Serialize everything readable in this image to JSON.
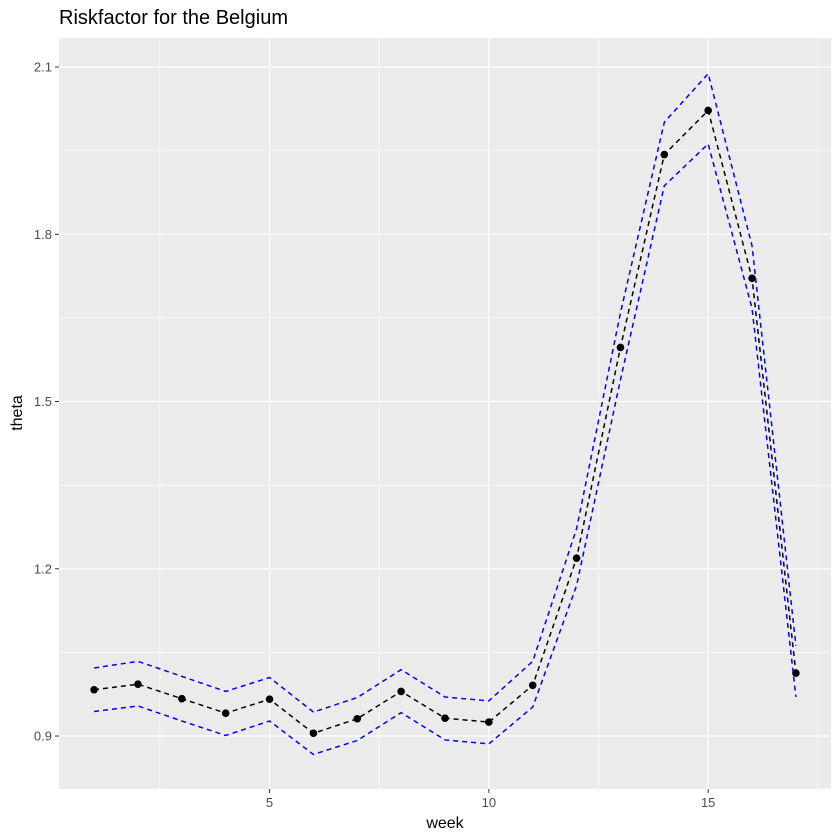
{
  "chart_data": {
    "type": "line",
    "title": "Riskfactor for the Belgium",
    "xlabel": "week",
    "ylabel": "theta",
    "xlim": [
      0.2,
      17.8
    ],
    "ylim": [
      0.805,
      2.152
    ],
    "x_ticks": [
      5,
      10,
      15
    ],
    "x_minor_ticks": [
      2.5,
      7.5,
      12.5,
      17.5
    ],
    "y_ticks": [
      0.9,
      1.2,
      1.5,
      1.8,
      2.1
    ],
    "y_tick_labels": [
      "0.9",
      "1.2",
      "1.5",
      "1.8",
      "2.1"
    ],
    "y_minor_ticks": [
      1.05,
      1.35,
      1.65,
      1.95
    ],
    "grid": true,
    "legend": "none",
    "x": [
      1,
      2,
      3,
      4,
      5,
      6,
      7,
      8,
      9,
      10,
      11,
      12,
      13,
      14,
      15,
      16,
      17
    ],
    "series": [
      {
        "role": "estimate",
        "color": "#000000",
        "markers": true,
        "values": [
          0.983,
          0.993,
          0.967,
          0.941,
          0.966,
          0.905,
          0.931,
          0.98,
          0.932,
          0.925,
          0.991,
          1.219,
          1.597,
          1.943,
          2.022,
          1.721,
          1.013
        ]
      },
      {
        "role": "upper",
        "color": "#0000ff",
        "markers": false,
        "values": [
          1.022,
          1.034,
          1.007,
          0.98,
          1.005,
          0.943,
          0.969,
          1.019,
          0.97,
          0.963,
          1.034,
          1.272,
          1.659,
          2.001,
          2.088,
          1.779,
          1.062
        ]
      },
      {
        "role": "lower",
        "color": "#0000ff",
        "markers": false,
        "values": [
          0.944,
          0.954,
          0.927,
          0.901,
          0.927,
          0.867,
          0.892,
          0.942,
          0.893,
          0.886,
          0.952,
          1.17,
          1.539,
          1.887,
          1.962,
          1.667,
          0.97
        ]
      }
    ]
  }
}
